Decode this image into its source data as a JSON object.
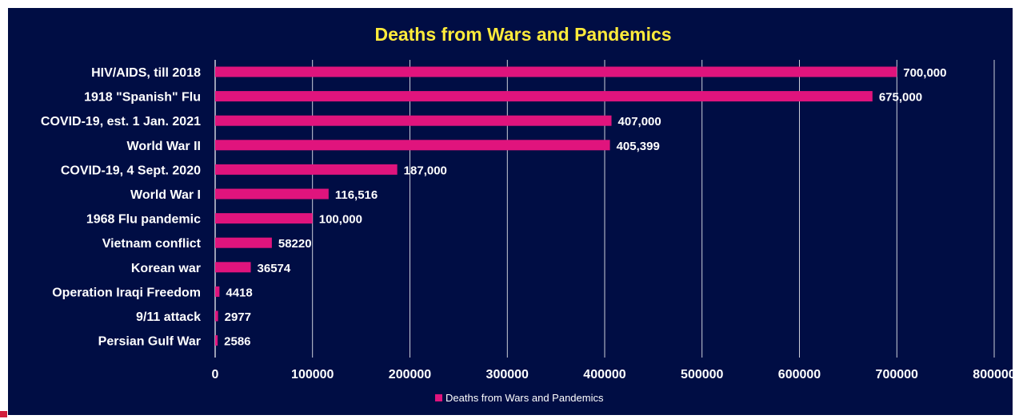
{
  "chart_data": {
    "type": "bar",
    "orientation": "horizontal",
    "title": "Deaths from Wars and Pandemics",
    "categories": [
      "HIV/AIDS, till 2018",
      "1918 \"Spanish\" Flu",
      "COVID-19, est. 1 Jan. 2021",
      "World War II",
      "COVID-19, 4 Sept. 2020",
      "World War I",
      "1968 Flu pandemic",
      "Vietnam conflict",
      "Korean war",
      "Operation Iraqi Freedom",
      "9/11 attack",
      "Persian Gulf War"
    ],
    "series": [
      {
        "name": "Deaths from Wars and Pandemics",
        "values": [
          700000,
          675000,
          407000,
          405399,
          187000,
          116516,
          100000,
          58220,
          36574,
          4418,
          2977,
          2586
        ],
        "labels": [
          "700,000",
          "675,000",
          "407,000",
          "405,399",
          "187,000",
          "116,516",
          "100,000",
          "58220",
          "36574",
          "4418",
          "2977",
          "2586"
        ]
      }
    ],
    "xlim": [
      0,
      800000
    ],
    "xticks": [
      0,
      100000,
      200000,
      300000,
      400000,
      500000,
      600000,
      700000,
      800000
    ],
    "xtick_labels": [
      "0",
      "100000",
      "200000",
      "300000",
      "400000",
      "500000",
      "600000",
      "700000",
      "800000"
    ],
    "grid": true,
    "legend_position": "bottom"
  },
  "colors": {
    "background": "#000d44",
    "bar": "#e0147d",
    "title": "#ffeb3b",
    "text": "#ffffff",
    "gridline": "#ffffff"
  }
}
